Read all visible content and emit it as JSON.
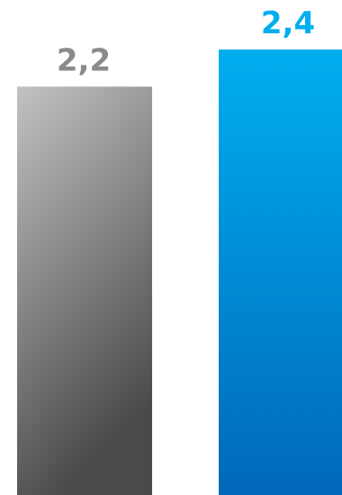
{
  "chart_data": {
    "type": "bar",
    "categories": [
      "",
      ""
    ],
    "values": [
      2.2,
      2.4
    ],
    "data_labels": [
      "2,2",
      "2,4"
    ],
    "title": "",
    "xlabel": "",
    "ylabel": "",
    "ylim": [
      0,
      2.4
    ],
    "grid": false,
    "legend": "none",
    "colors": {
      "bar1_top": "#c2c2c2",
      "bar1_bottom": "#4a4a4a",
      "bar2_top": "#00aeef",
      "bar2_bottom": "#0068b8",
      "label1": "#8a8a8a",
      "label2": "#00aeef"
    }
  }
}
